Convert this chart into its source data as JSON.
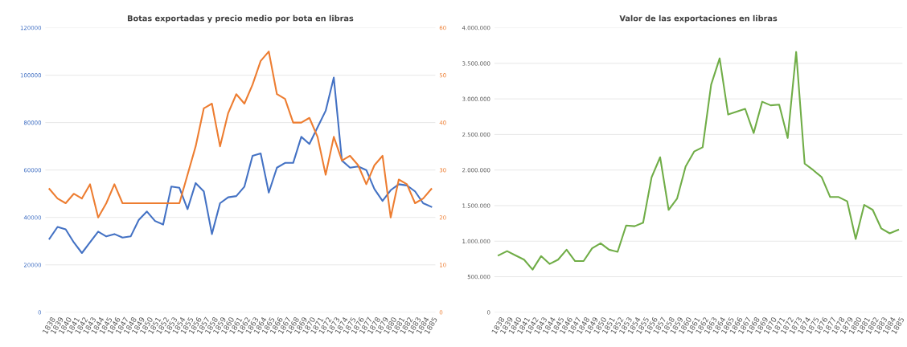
{
  "chart_data": [
    {
      "type": "line",
      "title": "Botas exportadas y precio medio por bota en libras",
      "categories": [
        "1838",
        "1839",
        "1840",
        "1841",
        "1842",
        "1843",
        "1844",
        "1845",
        "1846",
        "1847",
        "1848",
        "1849",
        "1850",
        "1851",
        "1852",
        "1853",
        "1854",
        "1855",
        "1856",
        "1857",
        "1858",
        "1859",
        "1860",
        "1861",
        "1862",
        "1863",
        "1864",
        "1865",
        "1866",
        "1867",
        "1868",
        "1869",
        "1870",
        "1871",
        "1872",
        "1873",
        "1874",
        "1875",
        "1876",
        "1877",
        "1878",
        "1879",
        "1880",
        "1881",
        "1882",
        "1883",
        "1884",
        "1885"
      ],
      "series": [
        {
          "color": "#4472c4",
          "values": [
            31000,
            36000,
            35000,
            29500,
            25000,
            29500,
            34000,
            32000,
            33000,
            31500,
            32000,
            39000,
            42500,
            38500,
            37000,
            53000,
            52500,
            43500,
            54500,
            51000,
            33000,
            46000,
            48500,
            49000,
            53000,
            66000,
            67000,
            50500,
            61000,
            63000,
            63000,
            74000,
            71000,
            78000,
            85000,
            99000,
            64000,
            61000,
            61500,
            60000,
            52000,
            47000,
            51500,
            54000,
            53500,
            51000,
            46000,
            44500
          ]
        },
        {
          "color": "#ed7d31",
          "axis": "y2",
          "values": [
            26,
            24,
            23,
            25,
            24,
            27,
            20,
            23,
            27,
            23,
            23,
            23,
            23,
            23,
            23,
            23,
            23,
            29,
            35,
            43,
            44,
            35,
            42,
            46,
            44,
            48,
            53,
            55,
            46,
            45,
            40,
            40,
            41,
            37,
            29,
            37,
            32,
            33,
            31,
            27,
            31,
            33,
            20,
            28,
            27,
            23,
            24,
            26
          ]
        }
      ],
      "ylim": [
        0,
        120000
      ],
      "yticks": [
        0,
        20000,
        40000,
        60000,
        80000,
        100000,
        120000
      ],
      "y2lim": [
        0,
        60
      ],
      "y2ticks": [
        0,
        10,
        20,
        30,
        40,
        50,
        60
      ],
      "grid": "y",
      "legend": false
    },
    {
      "type": "line",
      "title": "Valor de las exportaciones en libras",
      "categories": [
        "1838",
        "1839",
        "1840",
        "1841",
        "1842",
        "1843",
        "1844",
        "1845",
        "1846",
        "1847",
        "1848",
        "1849",
        "1850",
        "1851",
        "1852",
        "1853",
        "1854",
        "1855",
        "1856",
        "1857",
        "1858",
        "1859",
        "1860",
        "1861",
        "1862",
        "1863",
        "1864",
        "1865",
        "1866",
        "1867",
        "1868",
        "1869",
        "1870",
        "1871",
        "1872",
        "1873",
        "1874",
        "1875",
        "1876",
        "1877",
        "1878",
        "1879",
        "1880",
        "1881",
        "1882",
        "1883",
        "1884",
        "1885"
      ],
      "series": [
        {
          "color": "#70ad47",
          "values": [
            800000,
            860000,
            800000,
            740000,
            600000,
            790000,
            680000,
            740000,
            880000,
            720000,
            720000,
            900000,
            970000,
            880000,
            850000,
            1220000,
            1210000,
            1260000,
            1900000,
            2180000,
            1440000,
            1600000,
            2050000,
            2260000,
            2320000,
            3200000,
            3570000,
            2780000,
            2820000,
            2860000,
            2520000,
            2960000,
            2910000,
            2920000,
            2450000,
            3660000,
            2090000,
            2000000,
            1900000,
            1620000,
            1620000,
            1560000,
            1030000,
            1510000,
            1440000,
            1180000,
            1110000,
            1160000
          ]
        }
      ],
      "ylim": [
        0,
        4000000
      ],
      "yticks": [
        0,
        {
          "value": 500000,
          "label": "500.000"
        },
        {
          "value": 1000000,
          "label": "1.000.000"
        },
        {
          "value": 1500000,
          "label": "1.500.000"
        },
        {
          "value": 2000000,
          "label": "2.000.000"
        },
        {
          "value": 2500000,
          "label": "2.500.000"
        },
        {
          "value": 3000000,
          "label": "3.000.000"
        },
        {
          "value": 3500000,
          "label": "3.500.000"
        },
        {
          "value": 4000000,
          "label": "4.000.000"
        }
      ],
      "grid": "y",
      "legend": false
    }
  ]
}
